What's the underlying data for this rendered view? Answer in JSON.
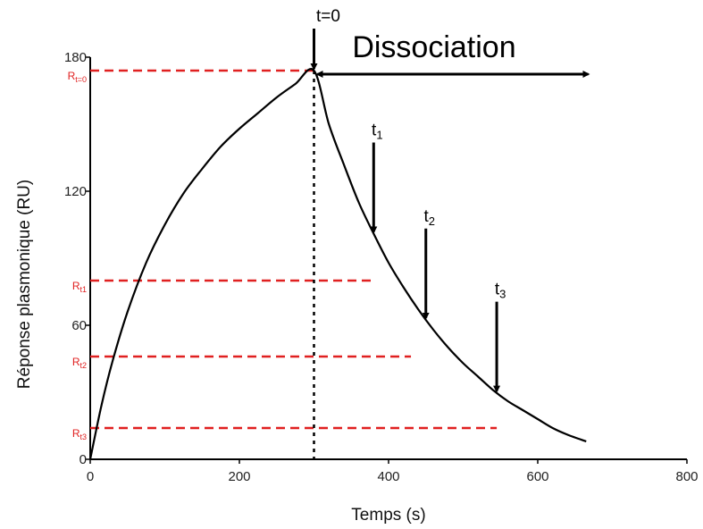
{
  "chart_data": {
    "type": "line",
    "title": "",
    "xlabel": "Temps (s)",
    "ylabel": "Réponse plasmonique (RU)",
    "xlim": [
      0,
      800
    ],
    "ylim": [
      0,
      180
    ],
    "x_ticks": [
      0,
      200,
      400,
      600,
      800
    ],
    "y_ticks": [
      0,
      60,
      120,
      180
    ],
    "grid": false,
    "colors": {
      "curve": "#000000",
      "reference": "#e02020"
    },
    "series": [
      {
        "x": [
          0,
          15,
          30,
          50,
          75,
          100,
          125,
          150,
          175,
          200,
          225,
          250,
          275,
          300,
          320,
          340,
          360,
          380,
          400,
          420,
          440,
          460,
          480,
          500,
          520,
          540,
          560,
          580,
          600,
          620,
          640,
          665
        ],
        "y": [
          0,
          24,
          44,
          66,
          88,
          105,
          119,
          130,
          140,
          148,
          155,
          162,
          168,
          174,
          150,
          132,
          115,
          101,
          88,
          77,
          67,
          58,
          50,
          43,
          37,
          31,
          26,
          22,
          18,
          14,
          11,
          8
        ]
      }
    ],
    "t0_line_x": 300,
    "reference_levels": [
      {
        "label": "R",
        "sub": "t=0",
        "y": 174,
        "x_end": 300
      },
      {
        "label": "R",
        "sub": "t1",
        "y": 80,
        "x_end": 380
      },
      {
        "label": "R",
        "sub": "t2",
        "y": 46,
        "x_end": 430
      },
      {
        "label": "R",
        "sub": "t3",
        "y": 14,
        "x_end": 545
      }
    ],
    "annotations": {
      "t0_label": "t=0",
      "dissociation_label": "Dissociation",
      "dissociation_x_range": [
        300,
        670
      ],
      "time_markers": [
        {
          "label": "t",
          "sub": "1",
          "x": 380
        },
        {
          "label": "t",
          "sub": "2",
          "x": 450
        },
        {
          "label": "t",
          "sub": "3",
          "x": 545
        }
      ]
    }
  }
}
